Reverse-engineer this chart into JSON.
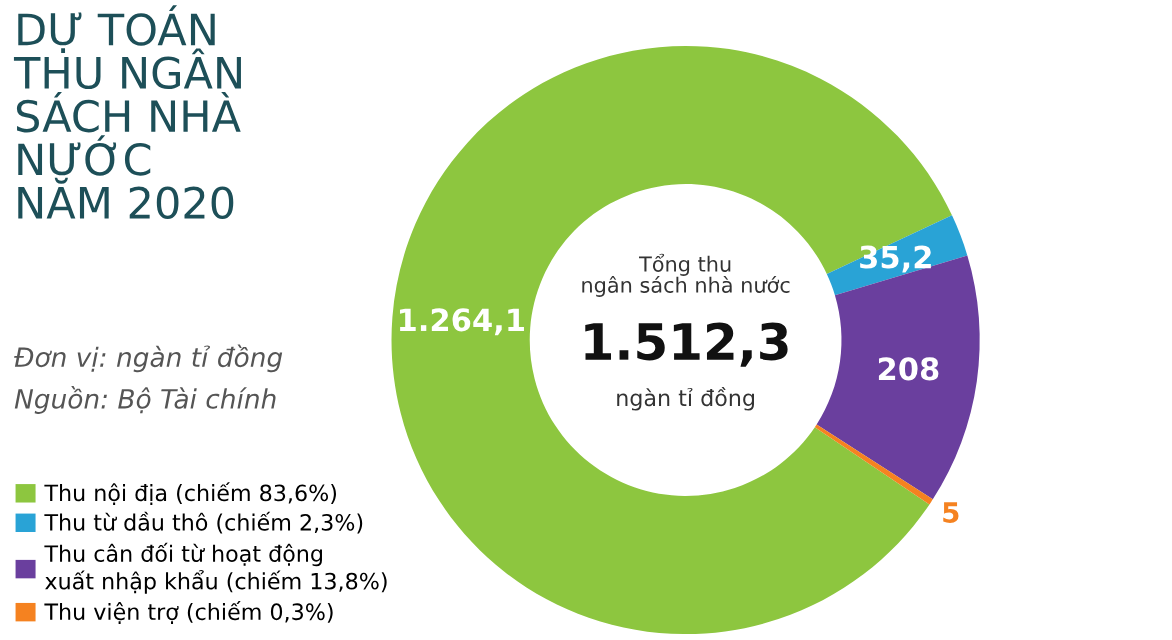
{
  "chart_data": {
    "type": "donut",
    "title": "DỰ TOÁN\nTHU NGÂN\nSÁCH NHÀ\nNƯỚC\nNĂM 2020",
    "subtitle": "Đơn vị: ngàn tỉ đồng",
    "annotations": [
      "Nguồn: Bộ Tài chính",
      "Tổng thu\nngân sách nhà nước",
      "1.512,3",
      "ngàn tỉ đồng"
    ],
    "categories": [
      "Thu nội địa (chiếm 83,6%)",
      "Thu từ dầu thô (chiếm 2,3%)",
      "Thu cân đối từ hoạt động\nxuất nhập khẩu (chiếm 13,8%)",
      "Thu viện trợ (chiếm 0,3%)"
    ],
    "values": [
      1264.1,
      35.2,
      208,
      5
    ],
    "value_labels": [
      "1.264,1",
      "35,2",
      "208",
      "5"
    ],
    "colors": [
      "#8dc63f",
      "#29a3d6",
      "#6a3f9e",
      "#f58220"
    ],
    "legend": "bottom left"
  }
}
